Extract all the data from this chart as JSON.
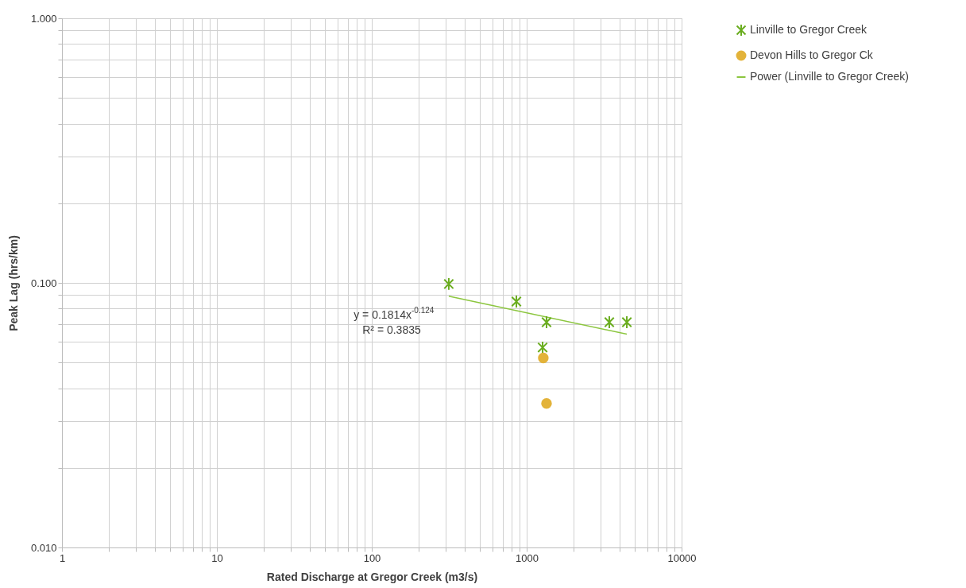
{
  "chart_data": {
    "type": "scatter",
    "xlabel": "Rated Discharge at Gregor Creek (m3/s)",
    "ylabel": "Peak Lag (hrs/km)",
    "log": "xy",
    "grid": true,
    "legend": "right",
    "xlim": [
      1,
      10000
    ],
    "xticks": [
      1,
      {
        "value": 2,
        "label": null
      },
      {
        "value": 3,
        "label": null
      },
      {
        "value": 4,
        "label": null
      },
      {
        "value": 5,
        "label": null
      },
      {
        "value": 6,
        "label": null
      },
      {
        "value": 7,
        "label": null
      },
      {
        "value": 8,
        "label": null
      },
      {
        "value": 9,
        "label": null
      },
      10,
      {
        "value": 20,
        "label": null
      },
      {
        "value": 30,
        "label": null
      },
      {
        "value": 40,
        "label": null
      },
      {
        "value": 50,
        "label": null
      },
      {
        "value": 60,
        "label": null
      },
      {
        "value": 70,
        "label": null
      },
      {
        "value": 80,
        "label": null
      },
      {
        "value": 90,
        "label": null
      },
      100,
      {
        "value": 200,
        "label": null
      },
      {
        "value": 300,
        "label": null
      },
      {
        "value": 400,
        "label": null
      },
      {
        "value": 500,
        "label": null
      },
      {
        "value": 600,
        "label": null
      },
      {
        "value": 700,
        "label": null
      },
      {
        "value": 800,
        "label": null
      },
      {
        "value": 900,
        "label": null
      },
      1000,
      {
        "value": 2000,
        "label": null
      },
      {
        "value": 3000,
        "label": null
      },
      {
        "value": 4000,
        "label": null
      },
      {
        "value": 5000,
        "label": null
      },
      {
        "value": 6000,
        "label": null
      },
      {
        "value": 7000,
        "label": null
      },
      {
        "value": 8000,
        "label": null
      },
      {
        "value": 9000,
        "label": null
      },
      10000
    ],
    "ylim": [
      0.01,
      1
    ],
    "yticks": [
      {
        "value": 0.01,
        "label": "0.010"
      },
      {
        "value": 0.02,
        "label": null
      },
      {
        "value": 0.03,
        "label": null
      },
      {
        "value": 0.04,
        "label": null
      },
      {
        "value": 0.05,
        "label": null
      },
      {
        "value": 0.06,
        "label": null
      },
      {
        "value": 0.07,
        "label": null
      },
      {
        "value": 0.08,
        "label": null
      },
      {
        "value": 0.09,
        "label": null
      },
      {
        "value": 0.1,
        "label": "0.100"
      },
      {
        "value": 0.2,
        "label": null
      },
      {
        "value": 0.3,
        "label": null
      },
      {
        "value": 0.4,
        "label": null
      },
      {
        "value": 0.5,
        "label": null
      },
      {
        "value": 0.6,
        "label": null
      },
      {
        "value": 0.7,
        "label": null
      },
      {
        "value": 0.8,
        "label": null
      },
      {
        "value": 0.9,
        "label": null
      },
      {
        "value": 1,
        "label": "1.000"
      }
    ],
    "series": [
      {
        "name": "Linville to Gregor Creek",
        "marker": "cross",
        "color": "#6aad1f",
        "x": [
          314,
          858,
          1343,
          3415,
          4430,
          1267
        ],
        "values": [
          0.099,
          0.085,
          0.071,
          0.071,
          0.071,
          0.057
        ]
      },
      {
        "name": "Devon Hills to Gregor Ck",
        "marker": "circle",
        "color": "#e3b33a",
        "x": [
          1280,
          1343
        ],
        "values": [
          0.052,
          0.035
        ]
      },
      {
        "name": "Power (Linville to Gregor Creek)",
        "type": "line",
        "marker": "none",
        "color": "#8cc63f",
        "x": [
          314,
          4430
        ],
        "values": [
          0.089,
          0.064
        ]
      }
    ],
    "annotations": [
      "y = 0.1814x$^{-0.124}$",
      "R² = 0.3835"
    ]
  }
}
